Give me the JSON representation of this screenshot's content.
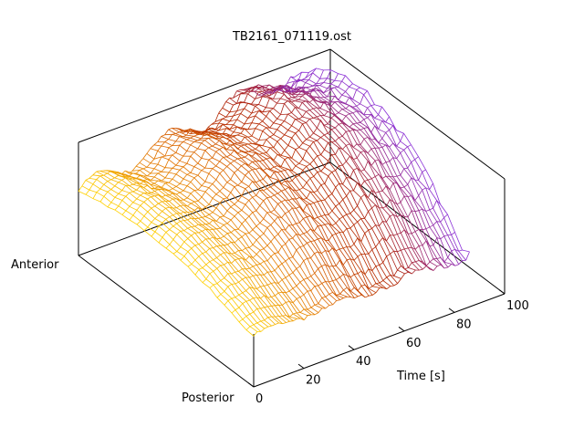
{
  "chart_data": {
    "type": "surface",
    "title": "TB2161_071119.ost",
    "x_axis": {
      "label": "Time [s]",
      "range": [
        0,
        100
      ],
      "ticks": [
        0,
        20,
        40,
        60,
        80,
        100
      ]
    },
    "y_axis": {
      "start_label": "Anterior",
      "end_label": "Posterior"
    },
    "z_axis": {
      "label": "",
      "ticks_shown": false
    },
    "grid": false,
    "colormap": [
      "#ffd000",
      "#e07000",
      "#b02000",
      "#8a30d8"
    ]
  }
}
